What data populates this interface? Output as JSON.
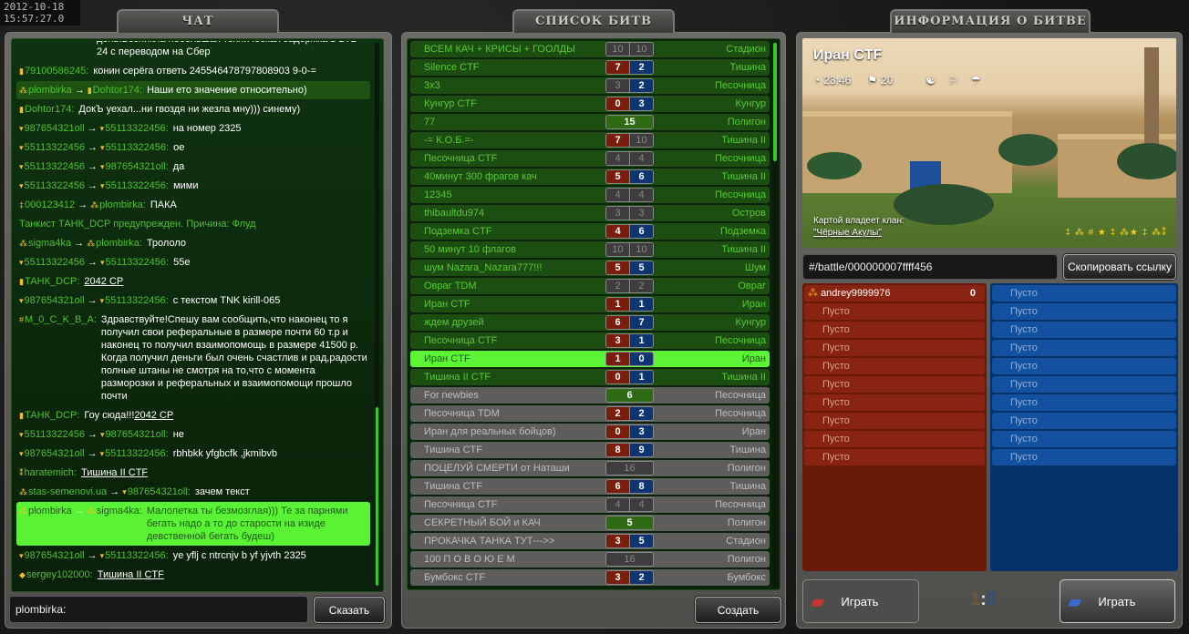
{
  "clock": {
    "date": "2012-10-18",
    "time": "15:57:27.0"
  },
  "chat": {
    "title": "ЧАТ",
    "messages": [
      {
        "from": "",
        "text": "день.Возникла небольшая техническая задержка в ВТБ 24 с переводом на Сбер",
        "cont": true
      },
      {
        "from": "79100586245",
        "from_rank": "▮",
        "text": "конин серёга ответь 245546478797808903 9-0-="
      },
      {
        "from": "plombirka",
        "from_rank": "⁂",
        "to": "Dohtor174",
        "to_rank": "▮",
        "text": "Наши ето значение относительно)",
        "hl": "hl1"
      },
      {
        "from": "Dohtor174",
        "from_rank": "▮",
        "text": "ДокЪ уехал...ни гвоздя ни жезла мну))) синему)"
      },
      {
        "from": "987654321oll",
        "from_rank": "▾",
        "to": "55113322456",
        "to_rank": "▾",
        "text": "на номер 2325"
      },
      {
        "from": "55113322456",
        "from_rank": "▾",
        "to": "55113322456",
        "to_rank": "▾",
        "text": "ое"
      },
      {
        "from": "55113322456",
        "from_rank": "▾",
        "to": "987654321oll",
        "to_rank": "▾",
        "text": "да"
      },
      {
        "from": "55113322456",
        "from_rank": "▾",
        "to": "55113322456",
        "to_rank": "▾",
        "text": "мими"
      },
      {
        "from": "000123412",
        "from_rank": "‡",
        "to": "plombirka",
        "to_rank": "⁂",
        "text": "ПАКА"
      },
      {
        "system": true,
        "text": "Танкист ТАНК_DCP предупрежден. Причина: Флуд"
      },
      {
        "from": "sigma4ka",
        "from_rank": "⁂",
        "to": "plombirka",
        "to_rank": "⁂",
        "text": "Трололо"
      },
      {
        "from": "55113322456",
        "from_rank": "▾",
        "to": "55113322456",
        "to_rank": "▾",
        "text": "55е"
      },
      {
        "from": "ТАНК_DCP",
        "from_rank": "▮",
        "text": "2042 CP",
        "link": true
      },
      {
        "from": "987654321oll",
        "from_rank": "▾",
        "to": "55113322456",
        "to_rank": "▾",
        "text": "с текстом TNK kirill-065"
      },
      {
        "from": "M_0_C_K_B_A",
        "from_rank": "#",
        "text": "Здравствуйте!Спешу вам сообщить,что наконец то я получил свои реферальные в размере почти 60 т.р и наконец то получил взаимопомощь в размере 41500 р. Когда получил деньги был очень счастлив и рад,радости полные штаны не смотря на то,что с момента разморозки и реферальных и взаимопомощи прошло почти"
      },
      {
        "from": "ТАНК_DCP",
        "from_rank": "▮",
        "text": "Гоу сюда!!!",
        "link_text": "2042 CP"
      },
      {
        "from": "55113322456",
        "from_rank": "▾",
        "to": "987654321oll",
        "to_rank": "▾",
        "text": "не"
      },
      {
        "from": "987654321oll",
        "from_rank": "▾",
        "to": "55113322456",
        "to_rank": "▾",
        "text": "rbhbkk yfgbcfk ,jkmibvb"
      },
      {
        "from": "haratemich",
        "from_rank": "⁑",
        "text": "Тишина II CTF",
        "link": true
      },
      {
        "from": "stas-semenovi.ua",
        "from_rank": "⁂",
        "to": "987654321oll",
        "to_rank": "▾",
        "text": "зачем текст"
      },
      {
        "from": "plombirka",
        "from_rank": "⁂",
        "to": "sigma4ka",
        "to_rank": "⁂",
        "text": "Малолетка ты безмозглая))) Те за парнями бегать надо а то до старости на изиде девственной бегать будеш)",
        "hl": "hl2"
      },
      {
        "from": "987654321oll",
        "from_rank": "▾",
        "to": "55113322456",
        "to_rank": "▾",
        "text": "ye yflj c ntrcnjv b yf yjvth 2325"
      },
      {
        "from": "sergey102000",
        "from_rank": "◆",
        "text": "Тишина II CTF",
        "link": true
      }
    ],
    "input_value": "plombirka:",
    "send_label": "Сказать"
  },
  "battles": {
    "title": "СПИСОК БИТВ",
    "create_label": "Создать",
    "rows": [
      {
        "name": "ВСЕМ КАЧ + КРИСЫ + ГООЛДЫ",
        "red": 10,
        "blue": 10,
        "red_full": true,
        "blue_full": true,
        "map": "Стадион"
      },
      {
        "name": "Silence CTF",
        "red": 7,
        "blue": 2,
        "map": "Тишина"
      },
      {
        "name": "3x3",
        "red": 3,
        "blue": 2,
        "red_full": true,
        "map": "Песочница"
      },
      {
        "name": "Кунгур CTF",
        "red": 0,
        "blue": 3,
        "map": "Кунгур"
      },
      {
        "name": "77",
        "dm": 15,
        "map": "Полигон"
      },
      {
        "name": "-= К.О.Б.=-",
        "red": 7,
        "blue": 10,
        "blue_full": true,
        "map": "Тишина II"
      },
      {
        "name": "Песочница CTF",
        "red": 4,
        "blue": 4,
        "red_full": true,
        "blue_full": true,
        "map": "Песочница"
      },
      {
        "name": "40минут 300 фрагов кач",
        "red": 5,
        "blue": 6,
        "map": "Тишина II"
      },
      {
        "name": "12345",
        "red": 4,
        "blue": 4,
        "red_full": true,
        "blue_full": true,
        "map": "Песочница"
      },
      {
        "name": "thibaultdu974",
        "red": 3,
        "blue": 3,
        "red_full": true,
        "blue_full": true,
        "map": "Остров"
      },
      {
        "name": "Подземка CTF",
        "red": 4,
        "blue": 6,
        "map": "Подземка"
      },
      {
        "name": "50 минут 10 флагов",
        "red": 10,
        "blue": 10,
        "red_full": true,
        "blue_full": true,
        "map": "Тишина II"
      },
      {
        "name": "шум Nazara_Nazara777!!!",
        "red": 5,
        "blue": 5,
        "map": "Шум"
      },
      {
        "name": "Овраг TDM",
        "red": 2,
        "blue": 2,
        "red_full": true,
        "blue_full": true,
        "map": "Овраг"
      },
      {
        "name": "Иран CTF",
        "red": 1,
        "blue": 1,
        "map": "Иран"
      },
      {
        "name": "ждем друзей",
        "red": 6,
        "blue": 7,
        "map": "Кунгур"
      },
      {
        "name": "Песочница CTF",
        "red": 3,
        "blue": 1,
        "map": "Песочница"
      },
      {
        "name": "Иран CTF",
        "red": 1,
        "blue": 0,
        "map": "Иран",
        "selected": true
      },
      {
        "name": "Тишина II CTF",
        "red": 0,
        "blue": 1,
        "map": "Тишина II"
      },
      {
        "name": "For newbies",
        "dm": 6,
        "map": "Песочница",
        "grey": true
      },
      {
        "name": "Песочница TDM",
        "red": 2,
        "blue": 2,
        "map": "Песочница",
        "grey": true
      },
      {
        "name": "Иран для реальных бойцов)",
        "red": 0,
        "blue": 3,
        "map": "Иран",
        "grey": true
      },
      {
        "name": "Тишина CTF",
        "red": 8,
        "blue": 9,
        "map": "Тишина",
        "grey": true
      },
      {
        "name": "ПОЦЕЛУЙ СМЕРТИ от Наташи",
        "dm": 16,
        "dm_full": true,
        "map": "Полигон",
        "grey": true
      },
      {
        "name": "Тишина CTF",
        "red": 6,
        "blue": 8,
        "map": "Тишина",
        "grey": true
      },
      {
        "name": "Песочница CTF",
        "red": 4,
        "blue": 4,
        "red_full": true,
        "blue_full": true,
        "map": "Песочница",
        "grey": true
      },
      {
        "name": "СЕКРЕТНЫЙ БОЙ и КАЧ",
        "dm": 5,
        "map": "Полигон",
        "grey": true
      },
      {
        "name": "ПРОКАЧКА ТАНКА ТУТ--->>",
        "red": 3,
        "blue": 5,
        "map": "Стадион",
        "grey": true
      },
      {
        "name": "100  П О В О Ю Е М",
        "dm": 16,
        "dm_full": true,
        "map": "Полигон",
        "grey": true
      },
      {
        "name": "Бумбокс CTF",
        "red": 3,
        "blue": 2,
        "map": "Бумбокс",
        "grey": true
      }
    ]
  },
  "info": {
    "title": "ИНФОРМАЦИЯ О БИТВЕ",
    "battle_name": "Иран CTF",
    "time": "23:46",
    "flag_limit": "20",
    "owner_label": "Картой владеет клан:",
    "owner_clan": "\"Чёрные Акулы\"",
    "link": "#/battle/000000007ffff456",
    "copy_label": "Скопировать ссылку",
    "red_team": [
      {
        "name": "andrey9999976",
        "score": "0"
      },
      {
        "name": "Пусто"
      },
      {
        "name": "Пусто"
      },
      {
        "name": "Пусто"
      },
      {
        "name": "Пусто"
      },
      {
        "name": "Пусто"
      },
      {
        "name": "Пусто"
      },
      {
        "name": "Пусто"
      },
      {
        "name": "Пусто"
      },
      {
        "name": "Пусто"
      }
    ],
    "blue_team": [
      {
        "name": "Пусто"
      },
      {
        "name": "Пусто"
      },
      {
        "name": "Пусто"
      },
      {
        "name": "Пусто"
      },
      {
        "name": "Пусто"
      },
      {
        "name": "Пусто"
      },
      {
        "name": "Пусто"
      },
      {
        "name": "Пусто"
      },
      {
        "name": "Пусто"
      },
      {
        "name": "Пусто"
      }
    ],
    "play_label": "Играть",
    "score_red": "1",
    "score_sep": ":",
    "score_blue": "0",
    "colors": {
      "red": "#8a2412",
      "blue": "#1450a0",
      "accent": "#5cf536"
    }
  }
}
